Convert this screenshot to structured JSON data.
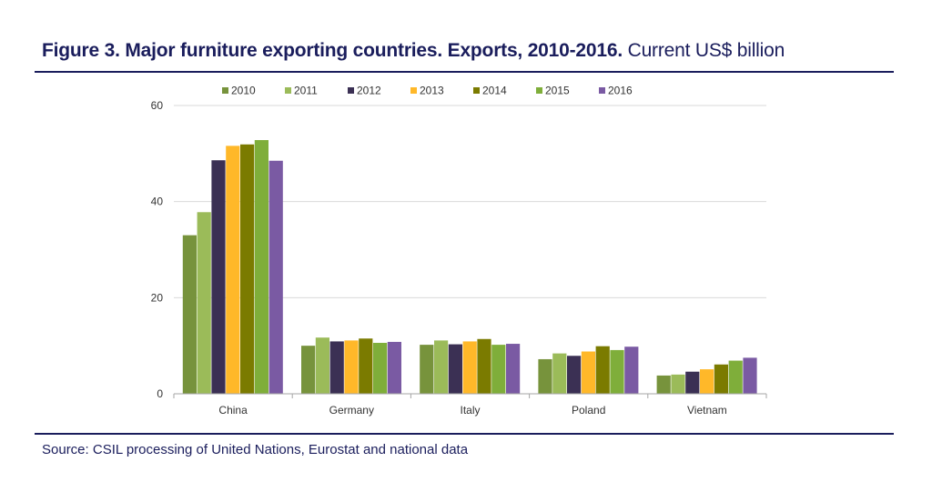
{
  "header": {
    "title_bold": "Figure 3. Major furniture exporting countries. Exports, 2010-2016.",
    "title_light": " Current US$ billion"
  },
  "footer": {
    "source": "Source: CSIL processing of United Nations, Eurostat and national data"
  },
  "colors": {
    "title": "#1a1d5c",
    "axis": "#a6a6a6",
    "grid": "#d9d9d9",
    "text": "#333333"
  },
  "chart_data": {
    "type": "bar",
    "title": "Figure 3. Major furniture exporting countries. Exports, 2010-2016. Current US$ billion",
    "xlabel": "",
    "ylabel": "",
    "ylim": [
      0,
      60
    ],
    "yticks": [
      0,
      20,
      40,
      60
    ],
    "grid": true,
    "legend_position": "top",
    "categories": [
      "China",
      "Germany",
      "Italy",
      "Poland",
      "Vietnam"
    ],
    "series": [
      {
        "name": "2010",
        "color": "#77933c",
        "values": [
          33.0,
          10.0,
          10.2,
          7.2,
          3.8
        ]
      },
      {
        "name": "2011",
        "color": "#9bbb59",
        "values": [
          37.8,
          11.7,
          11.1,
          8.4,
          4.0
        ]
      },
      {
        "name": "2012",
        "color": "#3b3054",
        "values": [
          48.6,
          10.9,
          10.3,
          7.9,
          4.6
        ]
      },
      {
        "name": "2013",
        "color": "#ffb829",
        "values": [
          51.6,
          11.1,
          10.9,
          8.8,
          5.1
        ]
      },
      {
        "name": "2014",
        "color": "#7b7b00",
        "values": [
          51.9,
          11.5,
          11.4,
          9.9,
          6.1
        ]
      },
      {
        "name": "2015",
        "color": "#7fae3a",
        "values": [
          52.8,
          10.6,
          10.2,
          9.1,
          6.9
        ]
      },
      {
        "name": "2016",
        "color": "#7a5aa3",
        "values": [
          48.5,
          10.8,
          10.4,
          9.8,
          7.5
        ]
      }
    ]
  }
}
